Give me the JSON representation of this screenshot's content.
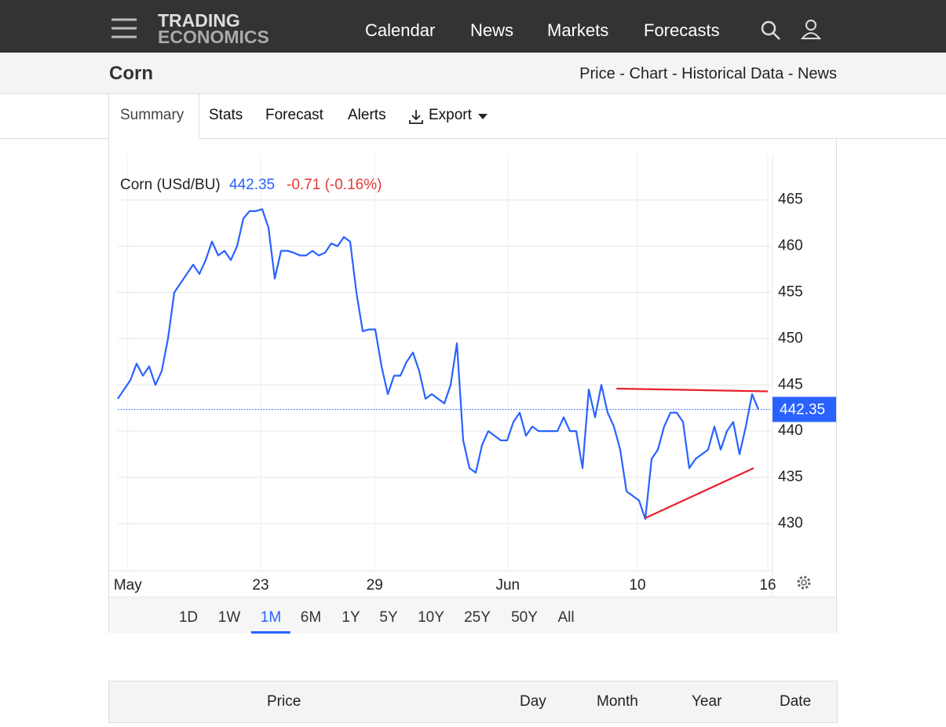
{
  "nav": {
    "logo_top": "TRADING",
    "logo_bottom": "ECONOMICS",
    "links": [
      "Calendar",
      "News",
      "Markets",
      "Forecasts"
    ]
  },
  "header": {
    "title": "Corn",
    "breadcrumb": "Price - Chart - Historical Data - News"
  },
  "tabs": [
    "Summary",
    "Stats",
    "Forecast",
    "Alerts",
    "Export"
  ],
  "chart_data": {
    "type": "line",
    "legend_name": "Corn (USd/BU)",
    "last_price": 442.35,
    "change": "-0.71 (-0.16%)",
    "series": [
      {
        "name": "Corn",
        "color": "#2962ff",
        "values": [
          443.5,
          444.5,
          445.5,
          447.3,
          446,
          447,
          445,
          446.5,
          450,
          455,
          456,
          457,
          458,
          457,
          458.5,
          460.5,
          459,
          459.5,
          458.5,
          460,
          463,
          463.8,
          463.8,
          464,
          462,
          456.5,
          459.5,
          459.5,
          459.3,
          459,
          459,
          459.5,
          459,
          459.3,
          460.3,
          460,
          461,
          460.5,
          455,
          450.8,
          451,
          451,
          447,
          444,
          446,
          446,
          447.5,
          448.5,
          446.5,
          443.5,
          444,
          443.5,
          443,
          445,
          449.5,
          439,
          436,
          435.5,
          438.5,
          440,
          439.5,
          439,
          439,
          441,
          442,
          439.5,
          440.5,
          440,
          440,
          440,
          440,
          441.5,
          440,
          440,
          436,
          444.5,
          441.5,
          445,
          442,
          440.5,
          438,
          433.5,
          433,
          432.5,
          430.5,
          437,
          438,
          440.5,
          442,
          442,
          441,
          436,
          437,
          437.5,
          438,
          440.5,
          438,
          440,
          441,
          437.5,
          440.5,
          444,
          442.35
        ]
      }
    ],
    "trendlines": [
      {
        "color": "#e8212b",
        "x": [
          79.4,
          103.5
        ],
        "y": [
          444.6,
          444.3
        ]
      },
      {
        "color": "#e8212b",
        "x": [
          84,
          101.25
        ],
        "y": [
          430.6,
          436
        ]
      }
    ],
    "xlim": [
      0,
      104
    ],
    "ylim": [
      424.9,
      469.9
    ],
    "xticks": [
      {
        "value": 1.6,
        "label": "May"
      },
      {
        "value": 22.75,
        "label": "23"
      },
      {
        "value": 40.9,
        "label": "29"
      },
      {
        "value": 62.1,
        "label": "Jun"
      },
      {
        "value": 82.75,
        "label": "10"
      },
      {
        "value": 103.5,
        "label": "16"
      }
    ],
    "yticks": [
      430,
      435,
      440,
      445,
      450,
      455,
      460,
      465
    ],
    "grid": true
  },
  "ranges": {
    "items": [
      "1D",
      "1W",
      "1M",
      "6M",
      "1Y",
      "5Y",
      "10Y",
      "25Y",
      "50Y",
      "All"
    ],
    "selected": 2
  },
  "table": {
    "headers": [
      "Price",
      "Day",
      "Month",
      "Year",
      "Date"
    ]
  }
}
